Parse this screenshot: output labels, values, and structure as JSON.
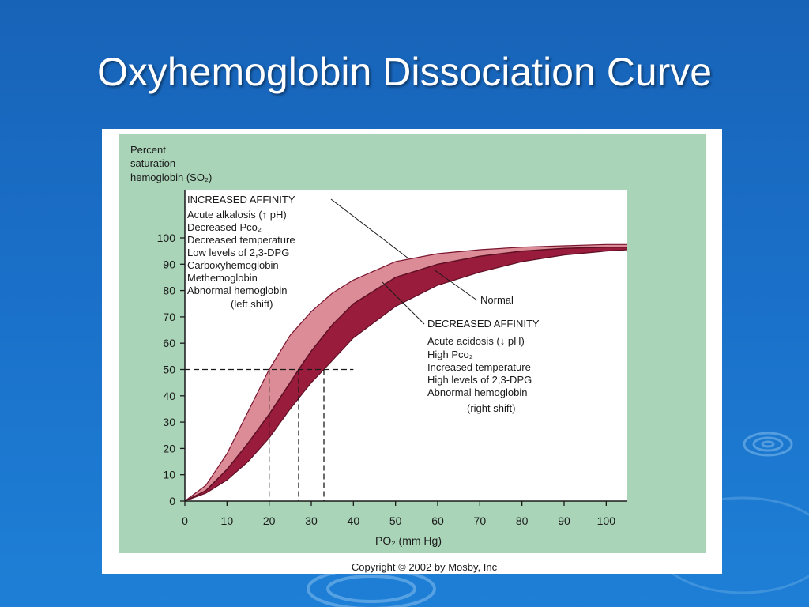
{
  "slide": {
    "title": "Oxyhemoglobin Dissociation Curve"
  },
  "chart_data": {
    "type": "area",
    "ylabel_lines": [
      "Percent",
      "saturation",
      "hemoglobin (SO₂)"
    ],
    "xlabel": "PO₂ (mm Hg)",
    "xlim": [
      0,
      105
    ],
    "ylim": [
      0,
      100
    ],
    "x_ticks": [
      0,
      10,
      20,
      30,
      40,
      50,
      60,
      70,
      80,
      90,
      100
    ],
    "y_ticks": [
      0,
      10,
      20,
      30,
      40,
      50,
      60,
      70,
      80,
      90,
      100
    ],
    "p50_reference": {
      "y": 50,
      "x_values": [
        20,
        27,
        33
      ]
    },
    "series": [
      {
        "name": "left shift",
        "color": "#dc8c96",
        "x": [
          0,
          5,
          10,
          15,
          20,
          25,
          30,
          35,
          40,
          50,
          60,
          70,
          80,
          90,
          100,
          105
        ],
        "y": [
          0,
          6,
          18,
          34,
          50,
          63,
          72,
          79,
          84,
          91,
          94,
          95.5,
          96.5,
          97,
          97.5,
          97.5
        ]
      },
      {
        "name": "Normal",
        "color": "#9a1c3c",
        "x": [
          0,
          5,
          10,
          15,
          20,
          25,
          27,
          30,
          35,
          40,
          50,
          60,
          70,
          80,
          90,
          100,
          105
        ],
        "y": [
          0,
          4,
          12,
          22,
          33,
          45,
          50,
          57,
          67,
          75,
          85,
          90,
          93,
          95,
          96,
          96.5,
          96.5
        ]
      },
      {
        "name": "right shift",
        "color": "#9a1c3c",
        "x": [
          0,
          5,
          10,
          15,
          20,
          25,
          30,
          33,
          40,
          50,
          60,
          70,
          80,
          90,
          100,
          105
        ],
        "y": [
          0,
          3,
          8,
          15,
          24,
          35,
          45,
          50,
          62,
          74,
          82,
          87,
          91,
          93.5,
          95,
          95.5
        ]
      }
    ],
    "annotations": {
      "increased": {
        "heading": "INCREASED AFFINITY",
        "lines": [
          "Acute alkalosis (↑ pH)",
          "Decreased Pco₂",
          "Decreased temperature",
          "Low levels of 2,3-DPG",
          "Carboxyhemoglobin",
          "Methemoglobin",
          "Abnormal hemoglobin"
        ],
        "footer": "(left shift)"
      },
      "normal": "Normal",
      "decreased": {
        "heading": "DECREASED AFFINITY",
        "lines": [
          "Acute acidosis (↓ pH)",
          "High Pco₂",
          "Increased temperature",
          "High levels of 2,3-DPG",
          "Abnormal hemoglobin"
        ],
        "footer": "(right shift)"
      }
    },
    "copyright": "Copyright © 2002 by Mosby, Inc",
    "colors": {
      "panel": "#a9d4b8",
      "plot_bg": "#ffffff",
      "light_band": "#dc8c96",
      "dark_band": "#9a1c3c"
    }
  }
}
